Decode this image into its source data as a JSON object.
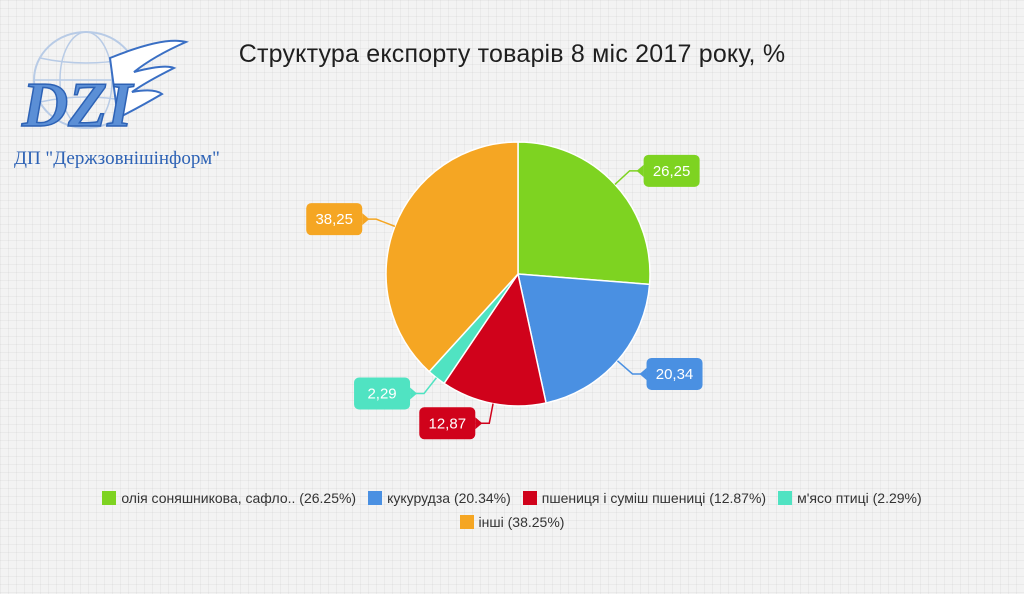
{
  "brand": {
    "name": "ДП \"Держзовнішінформ\"",
    "logo_text": "DZI"
  },
  "chart_data": {
    "type": "pie",
    "title": "Структура експорту товарів 8 міс 2017 року, %",
    "slices": [
      {
        "legend": "олія соняшникова, сафло.. (26.25%)",
        "value": 26.25,
        "label": "26,25",
        "color": "#7ed321"
      },
      {
        "legend": "кукурудза (20.34%)",
        "value": 20.34,
        "label": "20,34",
        "color": "#4a90e2"
      },
      {
        "legend": "пшениця і суміш пшениці (12.87%)",
        "value": 12.87,
        "label": "12,87",
        "color": "#d0021b"
      },
      {
        "legend": "м'ясо птиці (2.29%)",
        "value": 2.29,
        "label": "2,29",
        "color": "#50e3c2"
      },
      {
        "legend": "інші (38.25%)",
        "value": 38.25,
        "label": "38,25",
        "color": "#f5a623"
      }
    ],
    "legend_position": "bottom"
  }
}
